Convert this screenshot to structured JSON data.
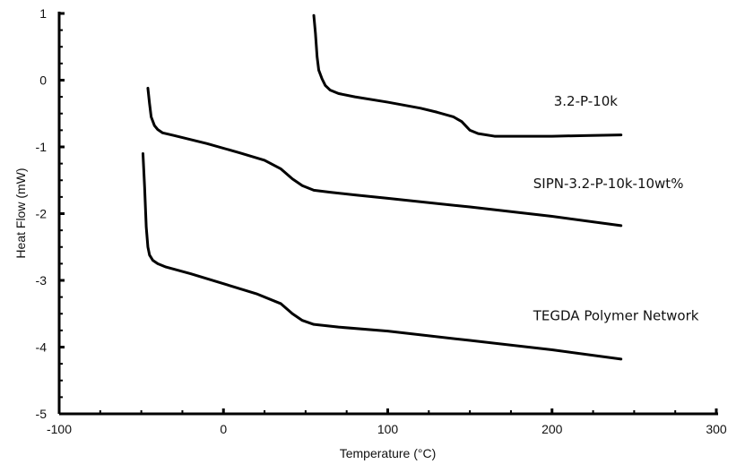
{
  "chart_data": {
    "type": "line",
    "title": "",
    "xlabel": "Temperature (°C)",
    "ylabel": "Heat Flow (mW)",
    "xlim": [
      -100,
      300
    ],
    "ylim": [
      -5,
      1
    ],
    "xticks": [
      -100,
      0,
      100,
      200,
      300
    ],
    "yticks": [
      1,
      0,
      -1,
      -2,
      -3,
      -4,
      -5
    ],
    "grid": false,
    "legend": "none",
    "series": [
      {
        "name": "3.2-P-10k",
        "points": [
          [
            55,
            0.97
          ],
          [
            56,
            0.7
          ],
          [
            57,
            0.35
          ],
          [
            58,
            0.15
          ],
          [
            60,
            0.02
          ],
          [
            62,
            -0.08
          ],
          [
            65,
            -0.15
          ],
          [
            70,
            -0.2
          ],
          [
            80,
            -0.25
          ],
          [
            100,
            -0.33
          ],
          [
            120,
            -0.42
          ],
          [
            130,
            -0.48
          ],
          [
            140,
            -0.55
          ],
          [
            145,
            -0.62
          ],
          [
            150,
            -0.75
          ],
          [
            155,
            -0.8
          ],
          [
            165,
            -0.84
          ],
          [
            180,
            -0.84
          ],
          [
            200,
            -0.84
          ],
          [
            220,
            -0.83
          ],
          [
            242,
            -0.82
          ]
        ]
      },
      {
        "name": "SIPN-3.2-P-10k-10wt%",
        "points": [
          [
            -46,
            -0.12
          ],
          [
            -45,
            -0.35
          ],
          [
            -44,
            -0.55
          ],
          [
            -42,
            -0.68
          ],
          [
            -40,
            -0.74
          ],
          [
            -37,
            -0.79
          ],
          [
            -30,
            -0.83
          ],
          [
            -10,
            -0.95
          ],
          [
            10,
            -1.09
          ],
          [
            25,
            -1.2
          ],
          [
            35,
            -1.33
          ],
          [
            42,
            -1.48
          ],
          [
            48,
            -1.58
          ],
          [
            55,
            -1.65
          ],
          [
            65,
            -1.68
          ],
          [
            80,
            -1.72
          ],
          [
            100,
            -1.77
          ],
          [
            150,
            -1.9
          ],
          [
            200,
            -2.04
          ],
          [
            242,
            -2.18
          ]
        ]
      },
      {
        "name": "TEGDA Polymer Network",
        "points": [
          [
            -49,
            -1.1
          ],
          [
            -48,
            -1.6
          ],
          [
            -47,
            -2.2
          ],
          [
            -46,
            -2.5
          ],
          [
            -45,
            -2.62
          ],
          [
            -43,
            -2.7
          ],
          [
            -40,
            -2.75
          ],
          [
            -35,
            -2.8
          ],
          [
            -20,
            -2.9
          ],
          [
            0,
            -3.05
          ],
          [
            20,
            -3.2
          ],
          [
            35,
            -3.35
          ],
          [
            42,
            -3.5
          ],
          [
            48,
            -3.6
          ],
          [
            55,
            -3.66
          ],
          [
            70,
            -3.7
          ],
          [
            100,
            -3.76
          ],
          [
            150,
            -3.9
          ],
          [
            200,
            -4.04
          ],
          [
            242,
            -4.18
          ]
        ]
      }
    ],
    "labels": [
      {
        "text": "3.2-P-10k",
        "x": 200,
        "y": -0.38
      },
      {
        "text": "SIPN-3.2-P-10k-10wt%",
        "x": 200,
        "y": -1.62
      },
      {
        "text": "TEGDA Polymer Network",
        "x": 200,
        "y": -3.6
      }
    ]
  }
}
